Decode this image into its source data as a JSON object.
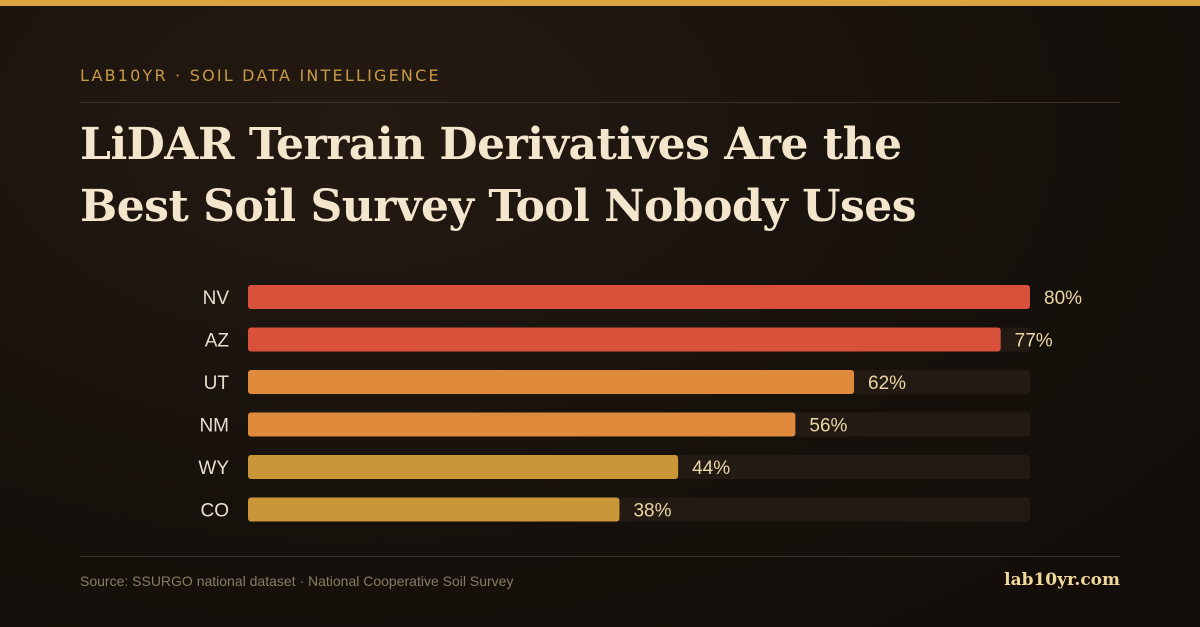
{
  "header": {
    "eyebrow": "LAB10YR · SOIL DATA INTELLIGENCE",
    "title_line1": "LiDAR Terrain Derivatives Are the",
    "title_line2": "Best Soil Survey Tool Nobody Uses"
  },
  "colors": {
    "accent": "#d9a441",
    "background": "#18120d",
    "track": "#221a13",
    "value_text": "#ead6a4",
    "label_text": "#e9dfcf"
  },
  "chart_data": {
    "type": "bar",
    "orientation": "horizontal",
    "categories": [
      "NV",
      "AZ",
      "UT",
      "NM",
      "WY",
      "CO"
    ],
    "values": [
      80,
      77,
      62,
      56,
      44,
      38
    ],
    "value_labels": [
      "80%",
      "77%",
      "62%",
      "56%",
      "44%",
      "38%"
    ],
    "bar_colors": [
      "#d9503b",
      "#d9503b",
      "#e08a3c",
      "#e08a3c",
      "#c99638",
      "#c99638"
    ],
    "xlim": [
      0,
      80
    ],
    "grid": false,
    "legend": "none"
  },
  "footer": {
    "source": "Source: SSURGO national dataset · National Cooperative Soil Survey",
    "brand": "lab10yr.com"
  }
}
